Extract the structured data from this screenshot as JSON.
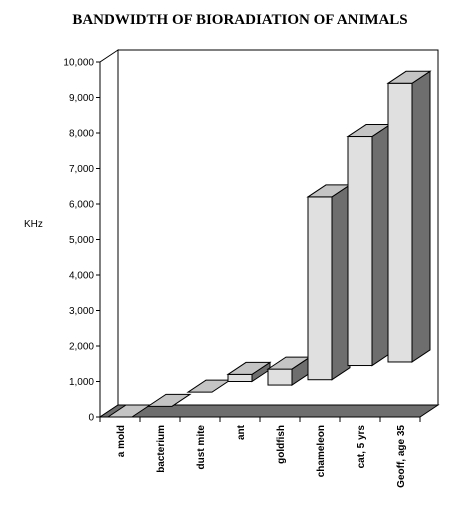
{
  "chart_data": {
    "type": "bar",
    "title": "BANDWIDTH OF BIORADIATION OF ANIMALS",
    "ylabel": "KHz",
    "xlabel": "",
    "ylim": [
      0,
      10000
    ],
    "yticks": [
      "0",
      "1,000",
      "2,000",
      "3,000",
      "4,000",
      "5,000",
      "6,000",
      "7,000",
      "8,000",
      "9,000",
      "10,000"
    ],
    "categories": [
      "a mold",
      "bacterium",
      "dust mite",
      "ant",
      "goldfish",
      "chameleon",
      "cat, 5 yrs",
      "Geoff, age 35"
    ],
    "ranges": [
      [
        0,
        0
      ],
      [
        300,
        300
      ],
      [
        700,
        700
      ],
      [
        1000,
        1200
      ],
      [
        900,
        1350
      ],
      [
        1050,
        6200
      ],
      [
        1450,
        7900
      ],
      [
        1550,
        9400
      ]
    ],
    "grid": false,
    "legend": "none",
    "colors": {
      "bar_front": "#e0e0e0",
      "bar_top": "#c4c4c4",
      "bar_side": "#6e6e6e",
      "floor": "#6e6e6e",
      "outline": "#000000"
    }
  }
}
